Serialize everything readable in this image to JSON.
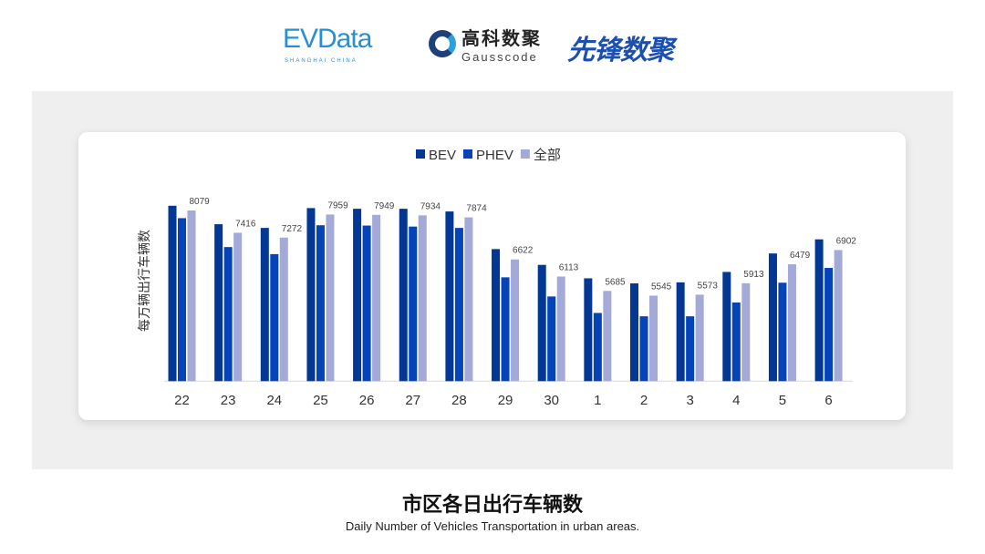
{
  "logos": {
    "evdata": "EVData",
    "evdata_sub": "SHANGHAI CHINA",
    "gauss_cn": "高科数聚",
    "gauss_en": "Gausscode",
    "xianfeng": "先锋数聚"
  },
  "title": "市区各日出行车辆数",
  "subtitle": "Daily Number of Vehicles Transportation in urban areas.",
  "chart_data": {
    "type": "bar",
    "ylabel": "每万辆出行车辆数",
    "ylim": [
      3000,
      8500
    ],
    "grid": false,
    "legend": "top",
    "categories": [
      "22",
      "23",
      "24",
      "25",
      "26",
      "27",
      "28",
      "29",
      "30",
      "1",
      "2",
      "3",
      "4",
      "5",
      "6"
    ],
    "series": [
      {
        "name": "BEV",
        "color": "#023894",
        "values": [
          8220,
          7670,
          7560,
          8150,
          8130,
          8130,
          8050,
          6930,
          6460,
          6060,
          5910,
          5940,
          6250,
          6800,
          7220
        ]
      },
      {
        "name": "PHEV",
        "color": "#0443b8",
        "values": [
          7850,
          6990,
          6780,
          7640,
          7630,
          7600,
          7560,
          6090,
          5520,
          5030,
          4930,
          4930,
          5340,
          5930,
          6370
        ]
      },
      {
        "name": "全部",
        "color": "#a3aad8",
        "values": [
          8079,
          7416,
          7272,
          7959,
          7949,
          7934,
          7874,
          6622,
          6113,
          5685,
          5545,
          5573,
          5913,
          6479,
          6902
        ],
        "labels": [
          "8079",
          "7416",
          "7272",
          "7959",
          "7949",
          "7934",
          "7874",
          "6622",
          "6113",
          "5685",
          "5545",
          "5573",
          "5913",
          "6479",
          "6902"
        ]
      }
    ]
  }
}
